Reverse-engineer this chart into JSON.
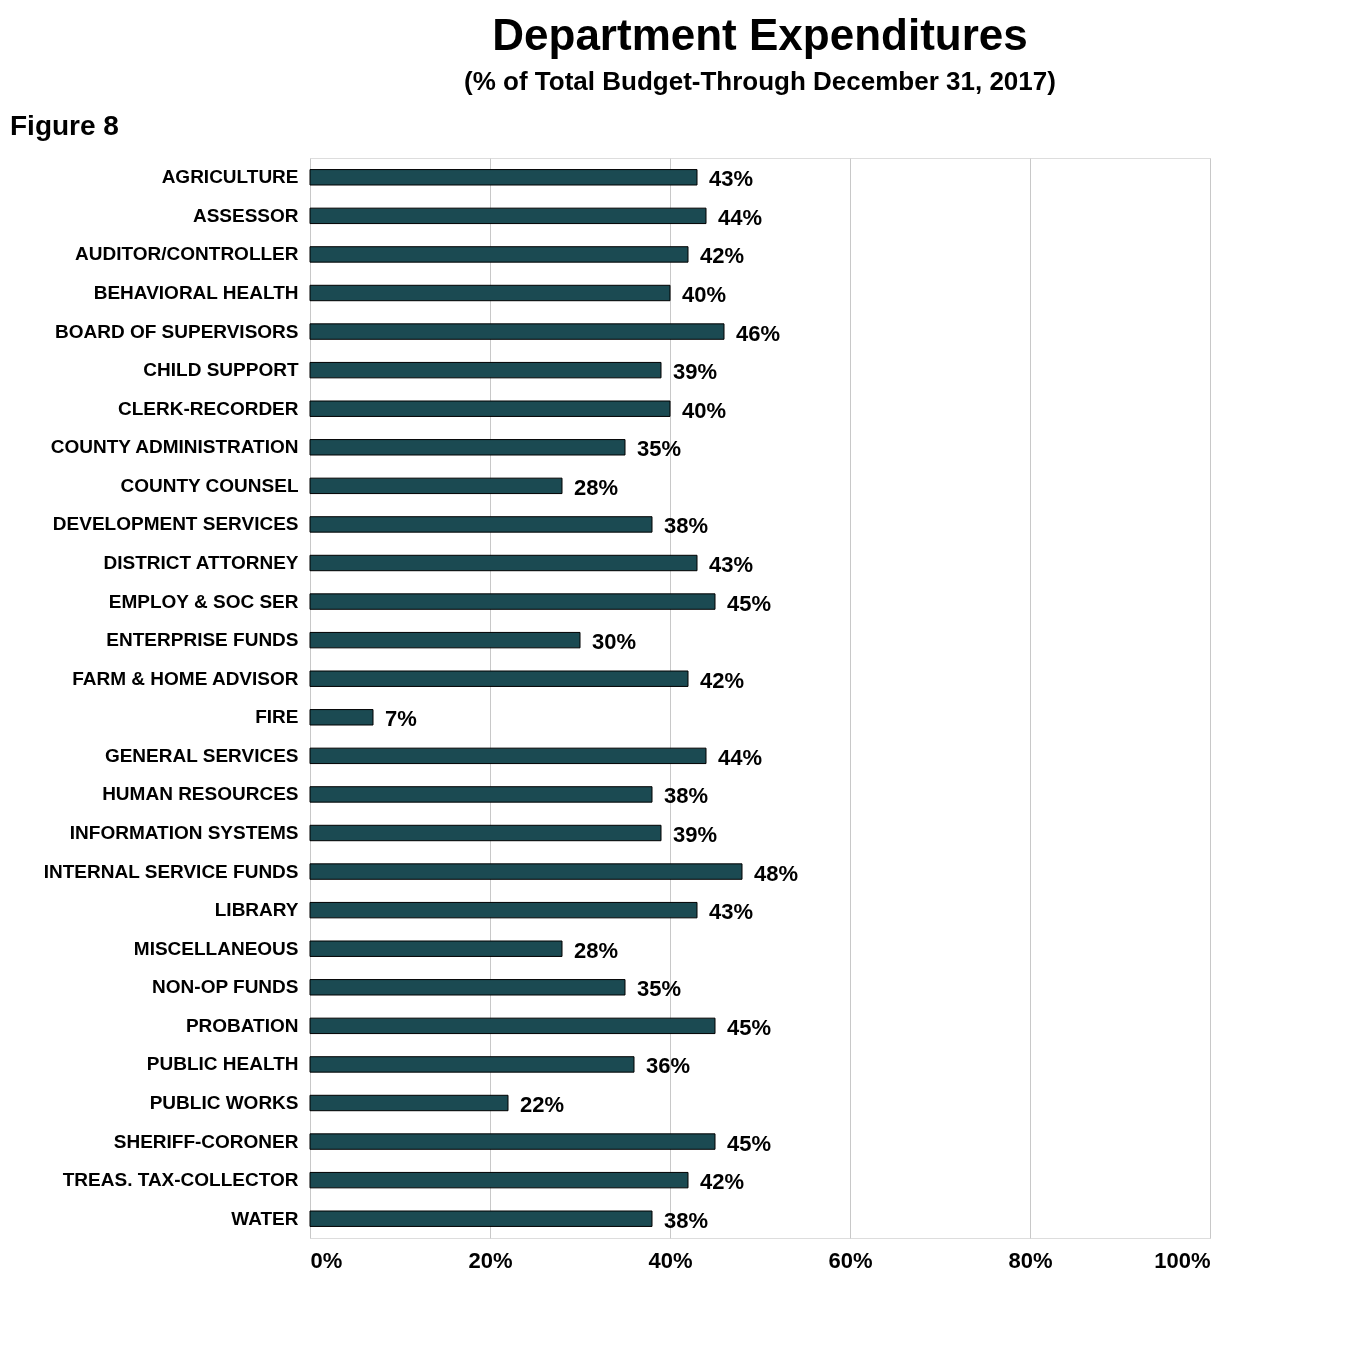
{
  "chart_data": {
    "type": "bar",
    "orientation": "horizontal",
    "title": "Department Expenditures",
    "subtitle": "(% of Total Budget-Through  December  31,  2017)",
    "annotations": [
      "Figure 8"
    ],
    "categories": [
      "AGRICULTURE",
      "ASSESSOR",
      "AUDITOR/CONTROLLER",
      "BEHAVIORAL HEALTH",
      "BOARD OF SUPERVISORS",
      "CHILD SUPPORT",
      "CLERK-RECORDER",
      "COUNTY ADMINISTRATION",
      "COUNTY COUNSEL",
      "DEVELOPMENT SERVICES",
      "DISTRICT ATTORNEY",
      "EMPLOY & SOC SER",
      "ENTERPRISE FUNDS",
      "FARM & HOME ADVISOR",
      "FIRE",
      "GENERAL SERVICES",
      "HUMAN RESOURCES",
      "INFORMATION SYSTEMS",
      "INTERNAL SERVICE FUNDS",
      "LIBRARY",
      "MISCELLANEOUS",
      "NON-OP FUNDS",
      "PROBATION",
      "PUBLIC HEALTH",
      "PUBLIC WORKS",
      "SHERIFF-CORONER",
      "TREAS. TAX-COLLECTOR",
      "WATER"
    ],
    "values": [
      43,
      44,
      42,
      40,
      46,
      39,
      40,
      35,
      28,
      38,
      43,
      45,
      30,
      42,
      7,
      44,
      38,
      39,
      48,
      43,
      28,
      35,
      45,
      36,
      22,
      45,
      42,
      38
    ],
    "value_labels": [
      "43%",
      "44%",
      "42%",
      "40%",
      "46%",
      "39%",
      "40%",
      "35%",
      "28%",
      "38%",
      "43%",
      "45%",
      "30%",
      "42%",
      "7%",
      "44%",
      "38%",
      "39%",
      "48%",
      "43%",
      "28%",
      "35%",
      "45%",
      "36%",
      "22%",
      "45%",
      "42%",
      "38%"
    ],
    "color": "#1b4a52",
    "xlim": [
      0,
      100
    ],
    "xticks": [
      {
        "value": 0,
        "label": "0%"
      },
      {
        "value": 20,
        "label": "20%"
      },
      {
        "value": 40,
        "label": "40%"
      },
      {
        "value": 60,
        "label": "60%"
      },
      {
        "value": 80,
        "label": "80%"
      },
      {
        "value": 100,
        "label": "100%"
      }
    ],
    "grid": "x"
  }
}
